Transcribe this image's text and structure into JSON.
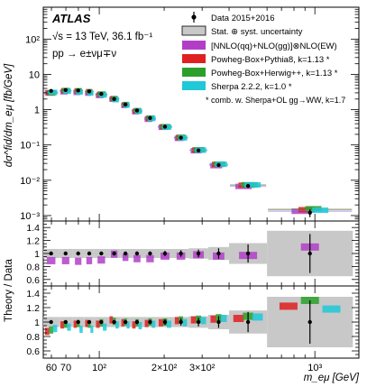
{
  "figure": {
    "atlas_label": "ATLAS",
    "energy_label": "√s = 13 TeV, 36.1 fb⁻¹",
    "process_label": "pp → e±νμ∓ν",
    "footnote": "* comb. w. Sherpa+OL gg→WW, k=1.7"
  },
  "legend": {
    "data": "Data 2015+2016",
    "uncertainty": "Stat. ⊕ syst. uncertainty",
    "nnlo": "[NNLO(qq)+NLO(gg)]⊗NLO(EW)",
    "pythia": "Powheg-Box+Pythia8, k=1.13 *",
    "herwig": "Powheg-Box+Herwig++, k=1.13 *",
    "sherpa": "Sherpa 2.2.2, k=1.0 *"
  },
  "axes": {
    "top_ylabel": "dσ^fid/dm_eμ [fb/GeV]",
    "ratio_ylabel": "Theory / Data",
    "xlabel": "m_eμ [GeV]"
  },
  "colors": {
    "data": "#000000",
    "uncertainty_band": "#c8c8c8",
    "nnlo": "#b23ec8",
    "pythia": "#e02020",
    "herwig": "#2aa02a",
    "sherpa": "#20c8d8"
  },
  "chart_data": {
    "type": "scatter",
    "x_scale": "log",
    "xlim": [
      55,
      1600
    ],
    "x_ticks": [
      {
        "value": 60,
        "label": "60"
      },
      {
        "value": 70,
        "label": "70"
      },
      {
        "value": 100,
        "label": "10²"
      },
      {
        "value": 200,
        "label": "2×10²"
      },
      {
        "value": 300,
        "label": "3×10²"
      },
      {
        "value": 1000,
        "label": "10³"
      }
    ],
    "bin_edges": [
      55,
      65,
      75,
      85,
      95,
      110,
      125,
      140,
      160,
      185,
      220,
      260,
      320,
      400,
      600,
      1500
    ],
    "top": {
      "y_scale": "log",
      "ylim": [
        0.0007,
        800
      ],
      "y_ticks": [
        {
          "value": 0.001,
          "label": "10⁻³"
        },
        {
          "value": 0.01,
          "label": "10⁻²"
        },
        {
          "value": 0.1,
          "label": "10⁻¹"
        },
        {
          "value": 1,
          "label": "1"
        },
        {
          "value": 10,
          "label": "10"
        },
        {
          "value": 100,
          "label": "10²"
        }
      ],
      "data_values": [
        3.4,
        3.6,
        3.5,
        3.3,
        2.8,
        2.0,
        1.4,
        0.95,
        0.58,
        0.33,
        0.16,
        0.07,
        0.027,
        0.0069,
        0.0012
      ],
      "data_errors": [
        0.15,
        0.15,
        0.15,
        0.14,
        0.12,
        0.09,
        0.06,
        0.04,
        0.025,
        0.015,
        0.008,
        0.004,
        0.0015,
        0.0005,
        0.0003
      ]
    },
    "ratio1": {
      "ylim": [
        0.5,
        1.5
      ],
      "y_ticks": [
        {
          "value": 0.6,
          "label": "0.6"
        },
        {
          "value": 0.8,
          "label": "0.8"
        },
        {
          "value": 1.0,
          "label": "1"
        },
        {
          "value": 1.2,
          "label": "1.2"
        },
        {
          "value": 1.4,
          "label": "1.4"
        }
      ],
      "band_halfwidth": [
        0.07,
        0.07,
        0.07,
        0.07,
        0.07,
        0.07,
        0.07,
        0.07,
        0.07,
        0.07,
        0.07,
        0.08,
        0.1,
        0.16,
        0.35
      ],
      "data_stat": [
        0.02,
        0.02,
        0.02,
        0.02,
        0.02,
        0.02,
        0.02,
        0.03,
        0.03,
        0.04,
        0.05,
        0.06,
        0.08,
        0.14,
        0.3
      ],
      "series": [
        {
          "name": "[NNLO(qq)+NLO(gg)]⊗NLO(EW)",
          "values": [
            0.89,
            0.89,
            0.88,
            0.89,
            0.9,
            0.99,
            0.94,
            0.92,
            0.92,
            0.96,
            0.96,
            0.98,
            0.96,
            0.97,
            1.1
          ]
        }
      ]
    },
    "ratio2": {
      "ylim": [
        0.5,
        1.5
      ],
      "y_ticks": [
        {
          "value": 0.6,
          "label": "0.6"
        },
        {
          "value": 0.8,
          "label": "0.8"
        },
        {
          "value": 1.0,
          "label": "1"
        },
        {
          "value": 1.2,
          "label": "1.2"
        },
        {
          "value": 1.4,
          "label": "1.4"
        }
      ],
      "band_halfwidth": [
        0.07,
        0.07,
        0.07,
        0.07,
        0.07,
        0.07,
        0.07,
        0.07,
        0.07,
        0.07,
        0.07,
        0.08,
        0.1,
        0.16,
        0.35
      ],
      "data_stat": [
        0.02,
        0.02,
        0.02,
        0.02,
        0.02,
        0.02,
        0.02,
        0.03,
        0.03,
        0.04,
        0.05,
        0.06,
        0.08,
        0.14,
        0.3
      ],
      "series": [
        {
          "name": "Powheg-Box+Pythia8, k=1.13 *",
          "values": [
            0.87,
            0.96,
            0.97,
            0.98,
            0.97,
            1.03,
            0.99,
            0.96,
            0.98,
            0.99,
            1.02,
            1.03,
            1.04,
            1.05,
            1.22
          ]
        },
        {
          "name": "Powheg-Box+Herwig++, k=1.13 *",
          "values": [
            0.89,
            0.97,
            0.98,
            0.97,
            0.99,
            1.01,
            1.0,
            0.99,
            1.0,
            1.0,
            1.03,
            1.04,
            1.06,
            1.08,
            1.3
          ]
        },
        {
          "name": "Sherpa 2.2.2, k=1.0 *",
          "values": [
            0.91,
            0.93,
            0.9,
            0.9,
            0.93,
            0.96,
            0.96,
            0.95,
            0.97,
            0.97,
            0.99,
            1.02,
            1.05,
            1.07,
            1.18
          ]
        }
      ]
    }
  }
}
